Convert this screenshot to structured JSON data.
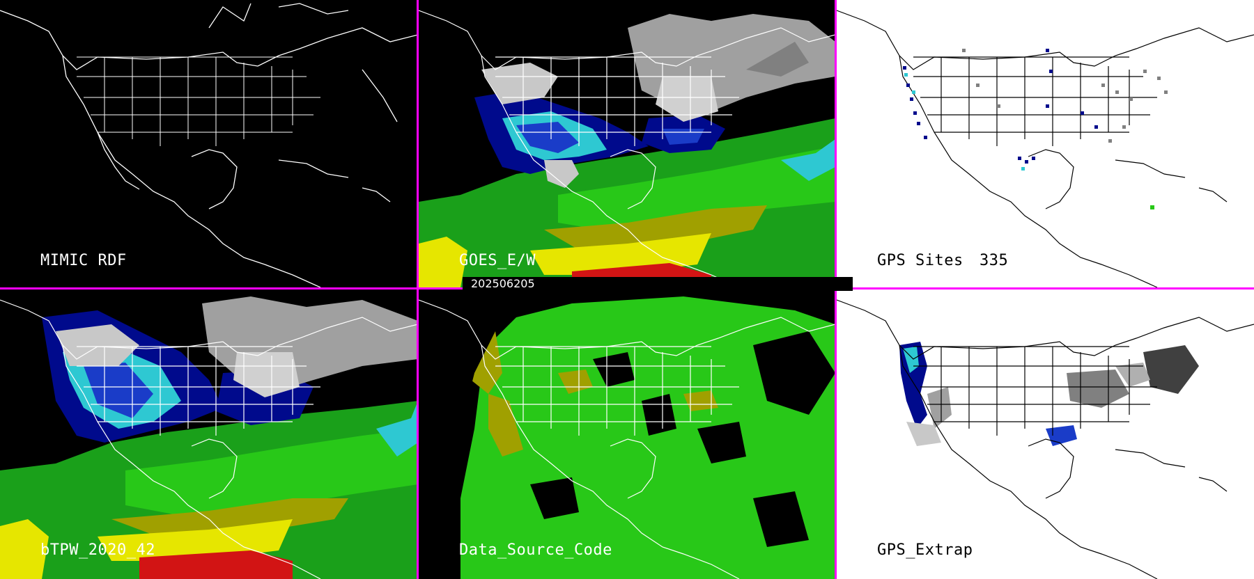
{
  "timestamp": "202506205",
  "panels": [
    {
      "id": "mimic-rdf",
      "label": "MIMIC RDF",
      "theme": "dark"
    },
    {
      "id": "goes-ew",
      "label": "GOES_E/W",
      "theme": "dark"
    },
    {
      "id": "gps-sites",
      "label": "GPS Sites",
      "count": "335",
      "theme": "light"
    },
    {
      "id": "btpw",
      "label": "bTPW_2020_42",
      "theme": "dark"
    },
    {
      "id": "data-source-code",
      "label": "Data_Source_Code",
      "theme": "dark"
    },
    {
      "id": "gps-extrap",
      "label": "GPS_Extrap",
      "theme": "light"
    }
  ],
  "colors": {
    "divider": "#ff00ff",
    "navy": "#000a8c",
    "blue": "#1a3cc8",
    "cyan": "#2ec8d2",
    "green": "#28c818",
    "dark_green": "#1aa01a",
    "olive": "#a0a000",
    "yellow": "#e6e600",
    "red": "#d21414",
    "gray": "#a0a0a0",
    "white": "#ffffff"
  }
}
